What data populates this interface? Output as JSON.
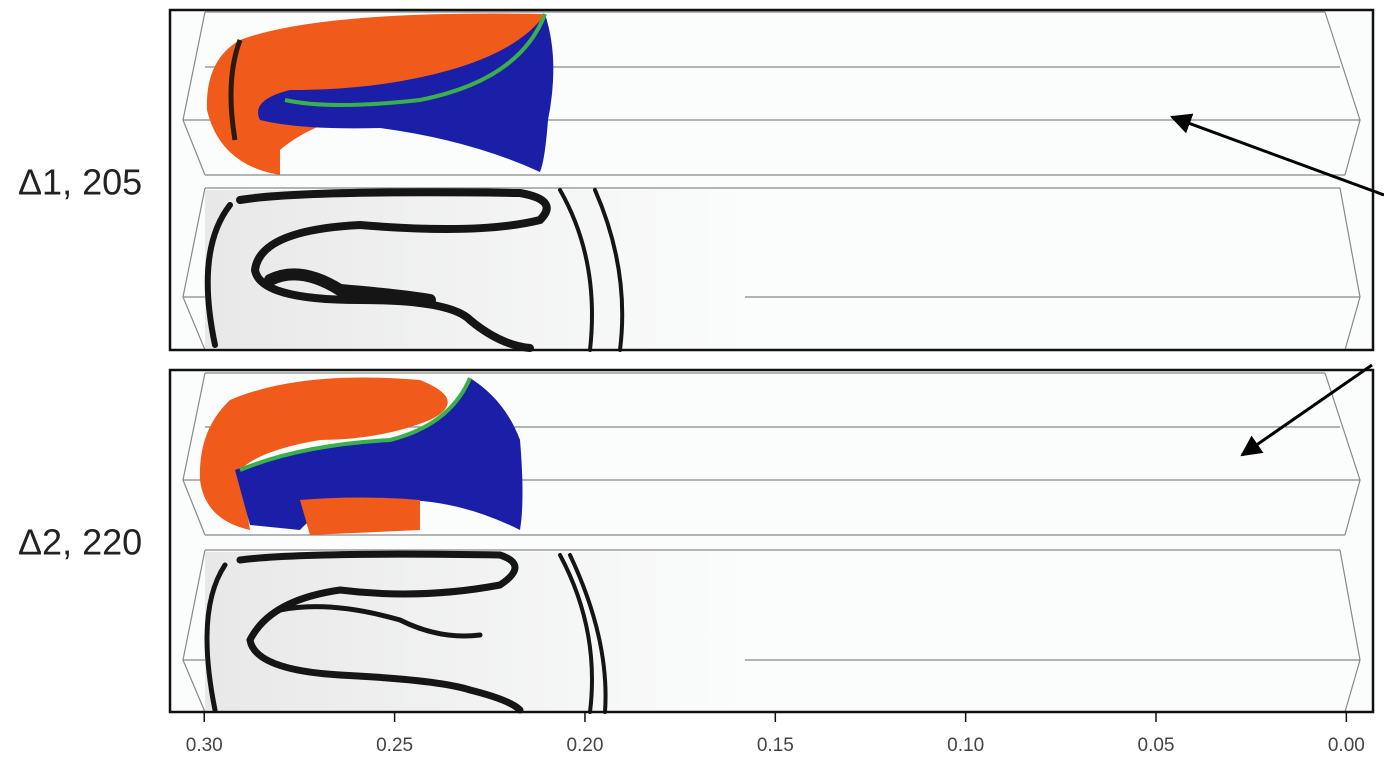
{
  "panels": [
    {
      "label": "Δ1, 205"
    },
    {
      "label": "Δ2, 220"
    }
  ],
  "axis": {
    "xlim": [
      0.309,
      -0.007
    ],
    "xticks": [
      {
        "value": 0.3,
        "label": "0.30"
      },
      0.25,
      {
        "value": 0.2,
        "label": "0.20"
      },
      0.15,
      {
        "value": 0.1,
        "label": "0.10"
      },
      0.05,
      {
        "value": 0,
        "label": "0.00"
      }
    ]
  }
}
